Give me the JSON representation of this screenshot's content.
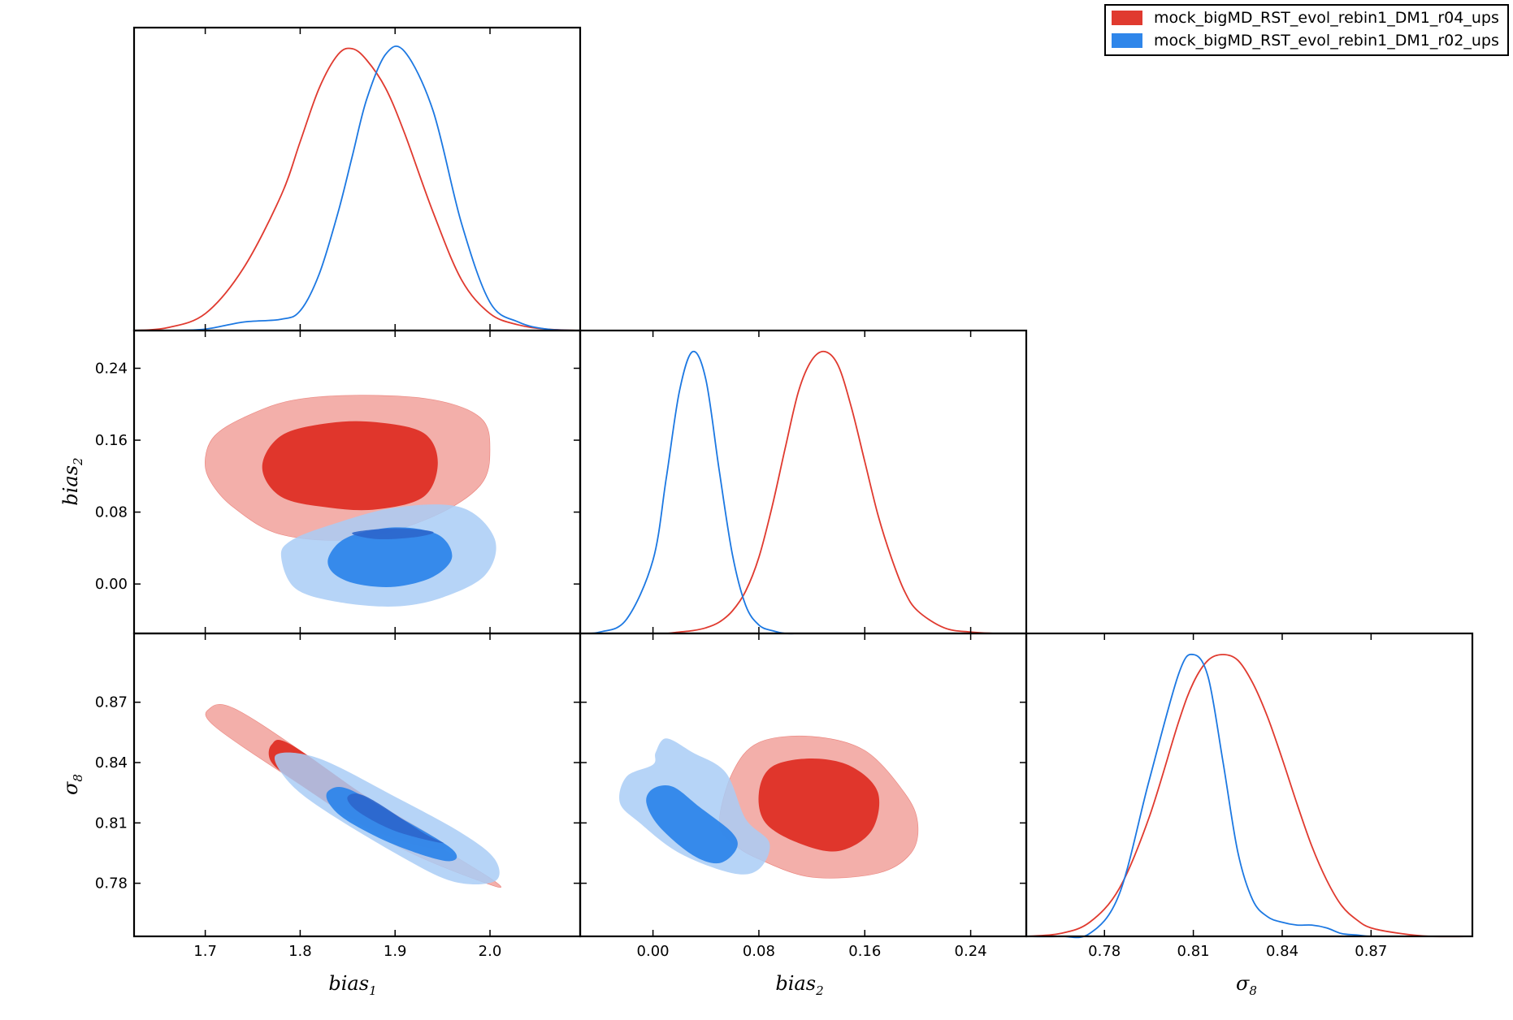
{
  "chart_data": {
    "type": "triangle",
    "colors": {
      "red_line": "#e03a2f",
      "red_inner": "#e0362c",
      "red_outer": "#f2aba5",
      "blue_line": "#1c78e2",
      "blue_inner": "#2f86ea",
      "blue_outer": "#a9cdf6",
      "overlap_inner": "#2c66cc"
    },
    "legend": {
      "entries": [
        {
          "name": "mock_bigMD_RST_evol_rebin1_DM1_r04_ups",
          "color": "#e03a2f"
        },
        {
          "name": "mock_bigMD_RST_evol_rebin1_DM1_r02_ups",
          "color": "#2f86ea"
        }
      ]
    },
    "parameters": [
      {
        "key": "bias1",
        "base": "bias",
        "sub": "1",
        "range": [
          1.625,
          2.095
        ],
        "ticks": [
          "1.7",
          "1.8",
          "1.9",
          "2.0"
        ],
        "tick_values": [
          1.7,
          1.8,
          1.9,
          2.0
        ]
      },
      {
        "key": "bias2",
        "base": "bias",
        "sub": "2",
        "range": [
          -0.055,
          0.282
        ],
        "ticks": [
          "0.00",
          "0.08",
          "0.16",
          "0.24"
        ],
        "tick_values": [
          0.0,
          0.08,
          0.16,
          0.24
        ]
      },
      {
        "key": "sigma8",
        "base": "σ",
        "sub": "8",
        "range": [
          0.7536,
          0.9042
        ],
        "ticks": [
          "0.78",
          "0.81",
          "0.84",
          "0.87"
        ],
        "tick_values": [
          0.78,
          0.81,
          0.84,
          0.87
        ]
      }
    ],
    "marginals": {
      "bias1": {
        "x": [
          1.625,
          1.66,
          1.7,
          1.74,
          1.78,
          1.8,
          1.82,
          1.84,
          1.855,
          1.87,
          1.89,
          1.91,
          1.94,
          1.97,
          2.0,
          2.03,
          2.06,
          2.095
        ],
        "r04": [
          0.0,
          0.01,
          0.06,
          0.22,
          0.48,
          0.67,
          0.86,
          0.98,
          1.0,
          0.96,
          0.86,
          0.7,
          0.42,
          0.18,
          0.06,
          0.02,
          0.005,
          0.0
        ],
        "r02": [
          0.0,
          0.0,
          0.005,
          0.03,
          0.04,
          0.07,
          0.2,
          0.42,
          0.62,
          0.82,
          0.98,
          0.99,
          0.78,
          0.38,
          0.1,
          0.03,
          0.005,
          0.0
        ]
      },
      "bias2": {
        "x": [
          -0.055,
          -0.04,
          -0.02,
          0.0,
          0.01,
          0.02,
          0.03,
          0.04,
          0.05,
          0.06,
          0.07,
          0.08,
          0.09,
          0.1,
          0.11,
          0.12,
          0.13,
          0.14,
          0.15,
          0.16,
          0.17,
          0.18,
          0.19,
          0.2,
          0.22,
          0.24,
          0.26,
          0.282
        ],
        "r04": [
          0.0,
          0.0,
          0.0,
          0.0,
          0.0,
          0.005,
          0.01,
          0.02,
          0.04,
          0.08,
          0.15,
          0.27,
          0.45,
          0.66,
          0.86,
          0.97,
          1.0,
          0.95,
          0.8,
          0.61,
          0.42,
          0.27,
          0.15,
          0.08,
          0.02,
          0.005,
          0.0,
          0.0
        ],
        "r02": [
          0.0,
          0.005,
          0.05,
          0.26,
          0.55,
          0.86,
          1.0,
          0.9,
          0.58,
          0.28,
          0.1,
          0.03,
          0.01,
          0.0,
          0.0,
          0.0,
          0.0,
          0.0,
          0.0,
          0.0,
          0.0,
          0.0,
          0.0,
          0.0,
          0.0,
          0.0,
          0.0,
          0.0
        ]
      },
      "sigma8": {
        "x": [
          0.7536,
          0.765,
          0.775,
          0.785,
          0.795,
          0.805,
          0.81,
          0.815,
          0.82,
          0.825,
          0.83,
          0.835,
          0.84,
          0.845,
          0.85,
          0.855,
          0.86,
          0.865,
          0.87,
          0.88,
          0.89,
          0.9042
        ],
        "r04": [
          0.0,
          0.01,
          0.05,
          0.17,
          0.42,
          0.76,
          0.9,
          0.98,
          1.0,
          0.98,
          0.9,
          0.78,
          0.63,
          0.47,
          0.32,
          0.2,
          0.11,
          0.06,
          0.03,
          0.01,
          0.0,
          0.0
        ],
        "r02": [
          0.0,
          0.0,
          0.01,
          0.15,
          0.55,
          0.93,
          1.0,
          0.92,
          0.62,
          0.3,
          0.13,
          0.07,
          0.05,
          0.04,
          0.04,
          0.03,
          0.01,
          0.005,
          0.0,
          0.0,
          0.0,
          0.0
        ]
      }
    },
    "contours": {
      "bias1_bias2": {
        "r04_outer": [
          [
            1.7,
            0.14
          ],
          [
            1.71,
            0.165
          ],
          [
            1.74,
            0.185
          ],
          [
            1.79,
            0.204
          ],
          [
            1.86,
            0.21
          ],
          [
            1.94,
            0.205
          ],
          [
            1.99,
            0.185
          ],
          [
            2.0,
            0.15
          ],
          [
            1.99,
            0.11
          ],
          [
            1.94,
            0.075
          ],
          [
            1.86,
            0.05
          ],
          [
            1.78,
            0.055
          ],
          [
            1.73,
            0.085
          ],
          [
            1.705,
            0.115
          ]
        ],
        "r04_inner": [
          [
            1.76,
            0.13
          ],
          [
            1.78,
            0.165
          ],
          [
            1.83,
            0.179
          ],
          [
            1.88,
            0.18
          ],
          [
            1.93,
            0.168
          ],
          [
            1.945,
            0.135
          ],
          [
            1.93,
            0.097
          ],
          [
            1.88,
            0.083
          ],
          [
            1.83,
            0.085
          ],
          [
            1.78,
            0.097
          ]
        ],
        "r02_outer": [
          [
            1.78,
            0.03
          ],
          [
            1.79,
            0.048
          ],
          [
            1.83,
            0.065
          ],
          [
            1.9,
            0.085
          ],
          [
            1.97,
            0.085
          ],
          [
            2.005,
            0.05
          ],
          [
            1.995,
            0.01
          ],
          [
            1.95,
            -0.015
          ],
          [
            1.9,
            -0.025
          ],
          [
            1.84,
            -0.02
          ],
          [
            1.795,
            -0.005
          ]
        ],
        "r02_inner": [
          [
            1.83,
            0.03
          ],
          [
            1.85,
            0.052
          ],
          [
            1.9,
            0.063
          ],
          [
            1.945,
            0.055
          ],
          [
            1.96,
            0.03
          ],
          [
            1.94,
            0.008
          ],
          [
            1.9,
            -0.003
          ],
          [
            1.86,
            0.0
          ],
          [
            1.835,
            0.012
          ]
        ],
        "overlap_inner": [
          [
            1.855,
            0.057
          ],
          [
            1.9,
            0.062
          ],
          [
            1.94,
            0.058
          ],
          [
            1.92,
            0.052
          ],
          [
            1.88,
            0.05
          ]
        ]
      },
      "bias1_sigma8": {
        "r04_outer": [
          [
            1.705,
            0.867
          ],
          [
            1.73,
            0.867
          ],
          [
            1.8,
            0.846
          ],
          [
            1.9,
            0.812
          ],
          [
            2.005,
            0.781
          ],
          [
            1.99,
            0.781
          ],
          [
            1.9,
            0.799
          ],
          [
            1.8,
            0.829
          ],
          [
            1.71,
            0.858
          ]
        ],
        "r04_inner": [
          [
            1.77,
            0.849
          ],
          [
            1.79,
            0.849
          ],
          [
            1.87,
            0.823
          ],
          [
            1.95,
            0.8
          ],
          [
            1.93,
            0.798
          ],
          [
            1.87,
            0.808
          ],
          [
            1.8,
            0.829
          ],
          [
            1.77,
            0.84
          ]
        ],
        "r02_outer": [
          [
            1.775,
            0.844
          ],
          [
            1.82,
            0.842
          ],
          [
            1.9,
            0.823
          ],
          [
            1.97,
            0.805
          ],
          [
            2.005,
            0.792
          ],
          [
            2.005,
            0.781
          ],
          [
            1.96,
            0.781
          ],
          [
            1.9,
            0.795
          ],
          [
            1.82,
            0.818
          ],
          [
            1.785,
            0.832
          ]
        ],
        "r02_inner": [
          [
            1.83,
            0.826
          ],
          [
            1.85,
            0.827
          ],
          [
            1.9,
            0.814
          ],
          [
            1.96,
            0.797
          ],
          [
            1.955,
            0.791
          ],
          [
            1.9,
            0.799
          ],
          [
            1.85,
            0.811
          ],
          [
            1.83,
            0.82
          ]
        ],
        "overlap_inner": [
          [
            1.85,
            0.823
          ],
          [
            1.87,
            0.823
          ],
          [
            1.93,
            0.805
          ],
          [
            1.95,
            0.8
          ],
          [
            1.9,
            0.806
          ],
          [
            1.86,
            0.816
          ]
        ]
      },
      "bias2_sigma8": {
        "r04_outer": [
          [
            0.05,
            0.81
          ],
          [
            0.06,
            0.835
          ],
          [
            0.08,
            0.85
          ],
          [
            0.12,
            0.853
          ],
          [
            0.16,
            0.846
          ],
          [
            0.19,
            0.825
          ],
          [
            0.2,
            0.81
          ],
          [
            0.195,
            0.795
          ],
          [
            0.17,
            0.785
          ],
          [
            0.12,
            0.783
          ],
          [
            0.08,
            0.792
          ],
          [
            0.06,
            0.8
          ]
        ],
        "r04_inner": [
          [
            0.08,
            0.825
          ],
          [
            0.09,
            0.838
          ],
          [
            0.12,
            0.842
          ],
          [
            0.15,
            0.838
          ],
          [
            0.17,
            0.825
          ],
          [
            0.165,
            0.806
          ],
          [
            0.14,
            0.796
          ],
          [
            0.11,
            0.8
          ],
          [
            0.085,
            0.81
          ]
        ],
        "r02_outer": [
          [
            -0.025,
            0.82
          ],
          [
            -0.02,
            0.833
          ],
          [
            0.0,
            0.839
          ],
          [
            0.002,
            0.845
          ],
          [
            0.01,
            0.852
          ],
          [
            0.03,
            0.845
          ],
          [
            0.055,
            0.835
          ],
          [
            0.07,
            0.812
          ],
          [
            0.088,
            0.8
          ],
          [
            0.08,
            0.787
          ],
          [
            0.06,
            0.785
          ],
          [
            0.02,
            0.795
          ],
          [
            -0.01,
            0.81
          ]
        ],
        "r02_inner": [
          [
            -0.005,
            0.82
          ],
          [
            0.0,
            0.827
          ],
          [
            0.015,
            0.828
          ],
          [
            0.035,
            0.818
          ],
          [
            0.06,
            0.805
          ],
          [
            0.063,
            0.797
          ],
          [
            0.05,
            0.79
          ],
          [
            0.03,
            0.794
          ],
          [
            0.005,
            0.808
          ]
        ]
      }
    }
  }
}
